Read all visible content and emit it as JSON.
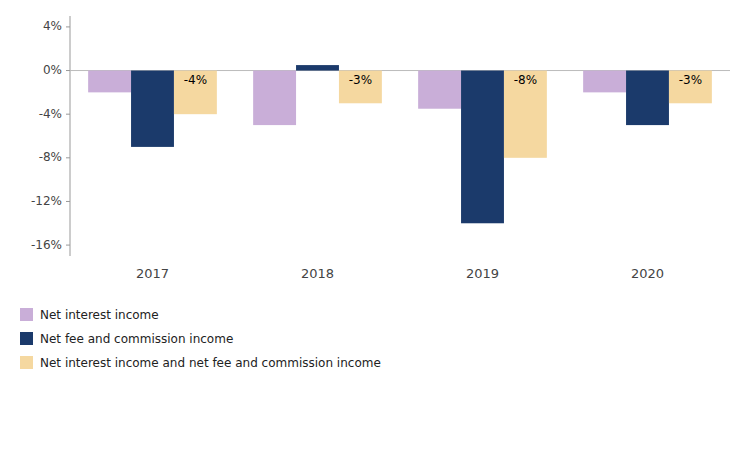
{
  "chart_data": {
    "type": "bar",
    "categories": [
      "2017",
      "2018",
      "2019",
      "2020"
    ],
    "series": [
      {
        "name": "Net interest income",
        "color": "#c9aed8",
        "values": [
          -2.0,
          -5.0,
          -3.5,
          -2.0
        ]
      },
      {
        "name": "Net fee and commission income",
        "color": "#1b3a6b",
        "values": [
          -7.0,
          0.5,
          -14.0,
          -5.0
        ]
      },
      {
        "name": "Net interest income and net fee and commission income",
        "color": "#f5d8a0",
        "values": [
          -4.0,
          -3.0,
          -8.0,
          -3.0
        ],
        "value_labels": [
          "-4%",
          "-3%",
          "-8%",
          "-3%"
        ]
      }
    ],
    "ylim": [
      -17,
      5
    ],
    "yticks": [
      {
        "value": 4,
        "label": "4%"
      },
      {
        "value": 0,
        "label": "0%"
      },
      {
        "value": -4,
        "label": "-4%"
      },
      {
        "value": -8,
        "label": "-8%"
      },
      {
        "value": -12,
        "label": "-12%"
      },
      {
        "value": -16,
        "label": "-16%"
      }
    ],
    "grid": false,
    "legend": "bottom",
    "data_labels": true
  }
}
